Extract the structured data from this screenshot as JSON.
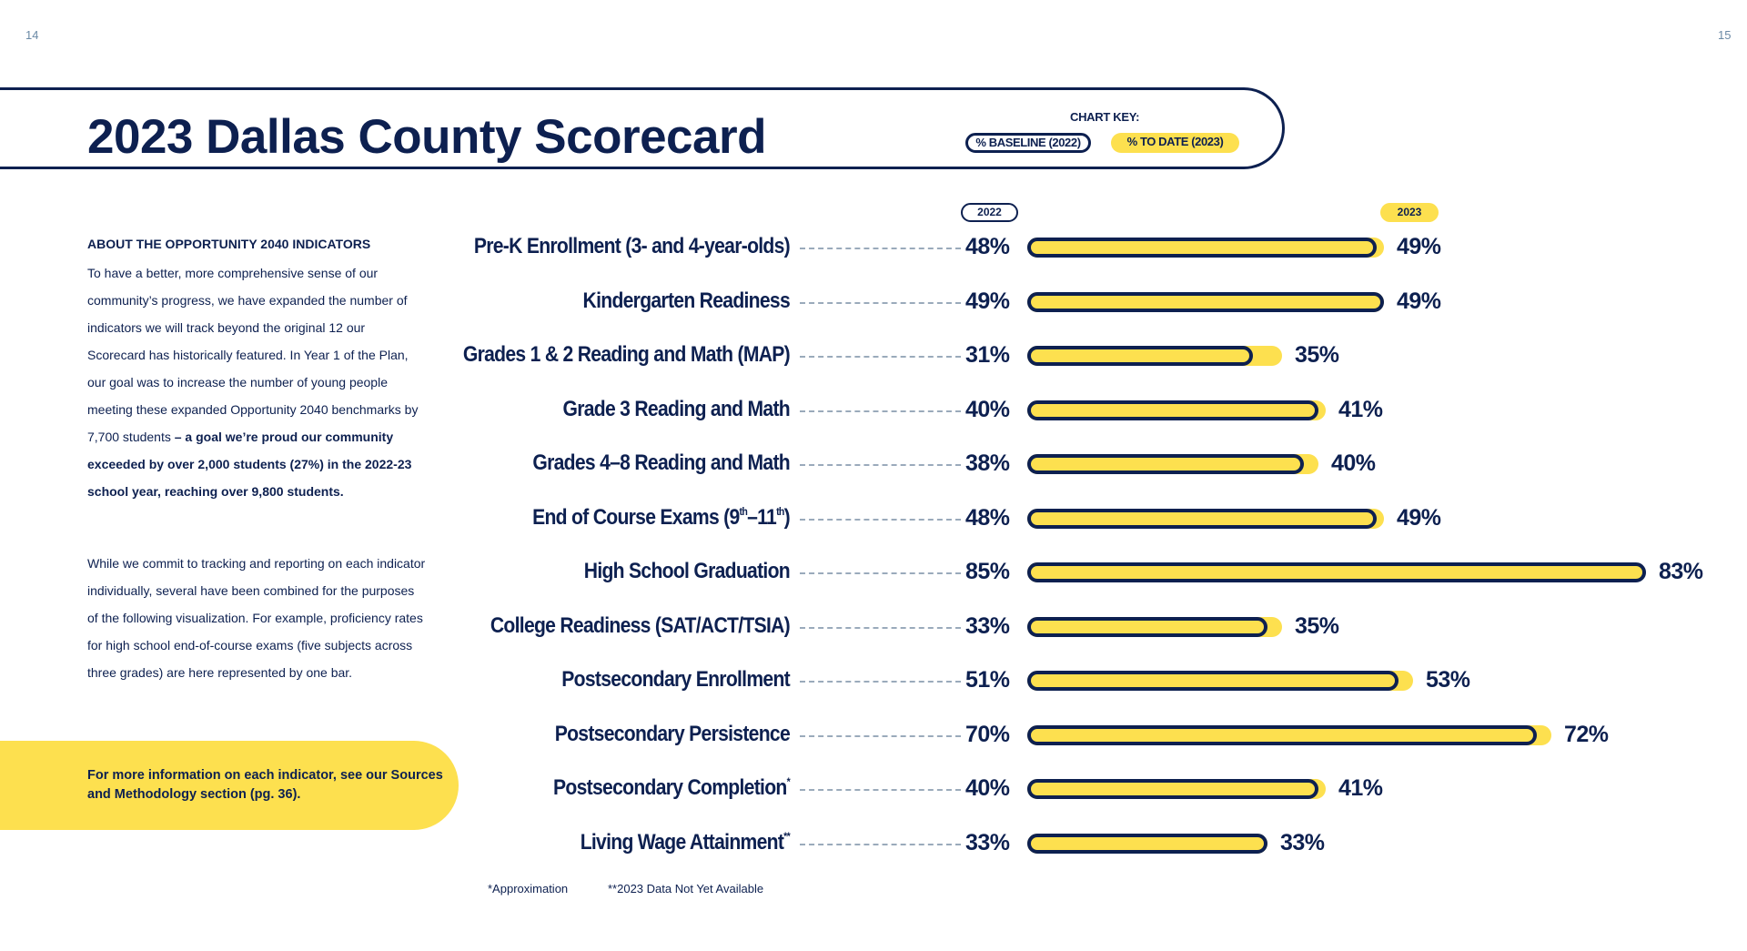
{
  "page_numbers": {
    "left": "14",
    "right": "15"
  },
  "title": "2023 Dallas County Scorecard",
  "chart_key": {
    "title": "CHART KEY:",
    "baseline_label": "% BASELINE (2022)",
    "to_date_label": "% TO DATE (2023)"
  },
  "year_pills": {
    "baseline": "2022",
    "to_date": "2023"
  },
  "about": {
    "heading": "ABOUT THE OPPORTUNITY 2040 INDICATORS",
    "p1_regular": "To have a better, more comprehensive sense of our community’s progress, we have expanded the number of indicators we will track beyond the original 12 our Scorecard has historically featured. In Year 1 of the Plan, our goal was to increase the number of young people meeting these expanded Opportunity 2040 benchmarks by 7,700 students ",
    "p1_bold": "– a goal we’re proud our community exceeded by over 2,000 students (27%) in the 2022-23 school year, reaching over 9,800 students.",
    "p2": "While we commit to tracking and reporting on each indicator individually, several have been combined for the purposes of the following visualization. For example, proficiency rates for high school end-of-course exams (five subjects across three grades) are here represented by one bar."
  },
  "more_info": "For more information on each indicator, see our Sources and Methodology section (pg. 36).",
  "footnotes": {
    "approx": "*Approximation",
    "not_available": "**2023 Data Not Yet Available"
  },
  "colors": {
    "navy": "#0d2050",
    "yellow": "#fde04f"
  },
  "chart_data": {
    "type": "bar",
    "orientation": "horizontal",
    "categories": [
      "Pre-K Enrollment (3- and 4-year-olds)",
      "Kindergarten Readiness",
      "Grades 1 & 2 Reading and Math (MAP)",
      "Grade 3 Reading and Math",
      "Grades 4–8 Reading and Math",
      "End of Course Exams (9th–11th)",
      "High School Graduation",
      "College Readiness (SAT/ACT/TSIA)",
      "Postsecondary Enrollment",
      "Postsecondary Persistence",
      "Postsecondary Completion*",
      "Living Wage Attainment**"
    ],
    "series": [
      {
        "name": "% BASELINE (2022)",
        "values": [
          48,
          49,
          31,
          40,
          38,
          48,
          85,
          33,
          51,
          70,
          40,
          33
        ]
      },
      {
        "name": "% TO DATE (2023)",
        "values": [
          49,
          49,
          35,
          41,
          40,
          49,
          83,
          35,
          53,
          72,
          41,
          33
        ]
      }
    ],
    "value_labels": {
      "baseline": [
        "48%",
        "49%",
        "31%",
        "40%",
        "38%",
        "48%",
        "85%",
        "33%",
        "51%",
        "70%",
        "40%",
        "33%"
      ],
      "to_date": [
        "49%",
        "49%",
        "35%",
        "41%",
        "40%",
        "49%",
        "83%",
        "35%",
        "53%",
        "72%",
        "41%",
        "33%"
      ]
    },
    "xlim": [
      0,
      100
    ],
    "grid": false
  }
}
